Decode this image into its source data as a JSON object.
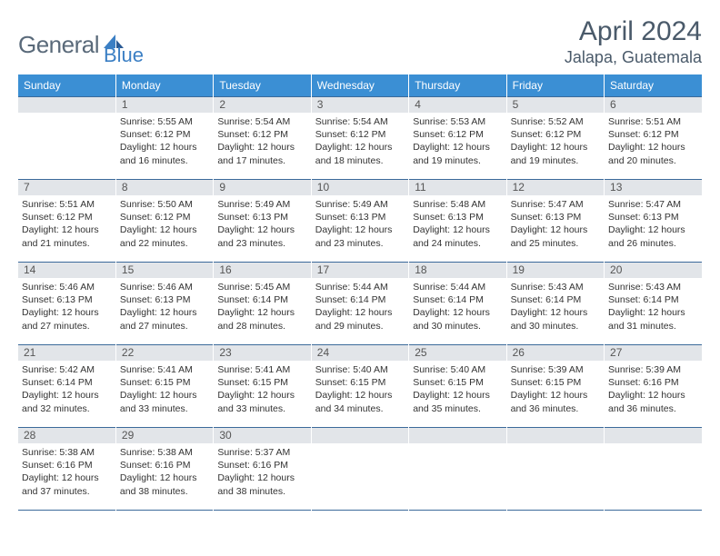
{
  "logo": {
    "text1": "General",
    "text2": "Blue"
  },
  "title": "April 2024",
  "location": "Jalapa, Guatemala",
  "dows": [
    "Sunday",
    "Monday",
    "Tuesday",
    "Wednesday",
    "Thursday",
    "Friday",
    "Saturday"
  ],
  "colors": {
    "header_bg": "#3b8fd4",
    "row_border": "#3b6a9a",
    "daynum_bg": "#e2e5e9",
    "logo_gray": "#5a6a7a",
    "logo_blue": "#3b7fc4"
  },
  "fonts": {
    "title_size": 30,
    "location_size": 18,
    "dow_size": 12,
    "daynum_size": 12,
    "body_size": 10.5
  },
  "weeks": [
    [
      {
        "n": "",
        "sr": "",
        "ss": "",
        "dl": ""
      },
      {
        "n": "1",
        "sr": "Sunrise: 5:55 AM",
        "ss": "Sunset: 6:12 PM",
        "dl": "Daylight: 12 hours and 16 minutes."
      },
      {
        "n": "2",
        "sr": "Sunrise: 5:54 AM",
        "ss": "Sunset: 6:12 PM",
        "dl": "Daylight: 12 hours and 17 minutes."
      },
      {
        "n": "3",
        "sr": "Sunrise: 5:54 AM",
        "ss": "Sunset: 6:12 PM",
        "dl": "Daylight: 12 hours and 18 minutes."
      },
      {
        "n": "4",
        "sr": "Sunrise: 5:53 AM",
        "ss": "Sunset: 6:12 PM",
        "dl": "Daylight: 12 hours and 19 minutes."
      },
      {
        "n": "5",
        "sr": "Sunrise: 5:52 AM",
        "ss": "Sunset: 6:12 PM",
        "dl": "Daylight: 12 hours and 19 minutes."
      },
      {
        "n": "6",
        "sr": "Sunrise: 5:51 AM",
        "ss": "Sunset: 6:12 PM",
        "dl": "Daylight: 12 hours and 20 minutes."
      }
    ],
    [
      {
        "n": "7",
        "sr": "Sunrise: 5:51 AM",
        "ss": "Sunset: 6:12 PM",
        "dl": "Daylight: 12 hours and 21 minutes."
      },
      {
        "n": "8",
        "sr": "Sunrise: 5:50 AM",
        "ss": "Sunset: 6:12 PM",
        "dl": "Daylight: 12 hours and 22 minutes."
      },
      {
        "n": "9",
        "sr": "Sunrise: 5:49 AM",
        "ss": "Sunset: 6:13 PM",
        "dl": "Daylight: 12 hours and 23 minutes."
      },
      {
        "n": "10",
        "sr": "Sunrise: 5:49 AM",
        "ss": "Sunset: 6:13 PM",
        "dl": "Daylight: 12 hours and 23 minutes."
      },
      {
        "n": "11",
        "sr": "Sunrise: 5:48 AM",
        "ss": "Sunset: 6:13 PM",
        "dl": "Daylight: 12 hours and 24 minutes."
      },
      {
        "n": "12",
        "sr": "Sunrise: 5:47 AM",
        "ss": "Sunset: 6:13 PM",
        "dl": "Daylight: 12 hours and 25 minutes."
      },
      {
        "n": "13",
        "sr": "Sunrise: 5:47 AM",
        "ss": "Sunset: 6:13 PM",
        "dl": "Daylight: 12 hours and 26 minutes."
      }
    ],
    [
      {
        "n": "14",
        "sr": "Sunrise: 5:46 AM",
        "ss": "Sunset: 6:13 PM",
        "dl": "Daylight: 12 hours and 27 minutes."
      },
      {
        "n": "15",
        "sr": "Sunrise: 5:46 AM",
        "ss": "Sunset: 6:13 PM",
        "dl": "Daylight: 12 hours and 27 minutes."
      },
      {
        "n": "16",
        "sr": "Sunrise: 5:45 AM",
        "ss": "Sunset: 6:14 PM",
        "dl": "Daylight: 12 hours and 28 minutes."
      },
      {
        "n": "17",
        "sr": "Sunrise: 5:44 AM",
        "ss": "Sunset: 6:14 PM",
        "dl": "Daylight: 12 hours and 29 minutes."
      },
      {
        "n": "18",
        "sr": "Sunrise: 5:44 AM",
        "ss": "Sunset: 6:14 PM",
        "dl": "Daylight: 12 hours and 30 minutes."
      },
      {
        "n": "19",
        "sr": "Sunrise: 5:43 AM",
        "ss": "Sunset: 6:14 PM",
        "dl": "Daylight: 12 hours and 30 minutes."
      },
      {
        "n": "20",
        "sr": "Sunrise: 5:43 AM",
        "ss": "Sunset: 6:14 PM",
        "dl": "Daylight: 12 hours and 31 minutes."
      }
    ],
    [
      {
        "n": "21",
        "sr": "Sunrise: 5:42 AM",
        "ss": "Sunset: 6:14 PM",
        "dl": "Daylight: 12 hours and 32 minutes."
      },
      {
        "n": "22",
        "sr": "Sunrise: 5:41 AM",
        "ss": "Sunset: 6:15 PM",
        "dl": "Daylight: 12 hours and 33 minutes."
      },
      {
        "n": "23",
        "sr": "Sunrise: 5:41 AM",
        "ss": "Sunset: 6:15 PM",
        "dl": "Daylight: 12 hours and 33 minutes."
      },
      {
        "n": "24",
        "sr": "Sunrise: 5:40 AM",
        "ss": "Sunset: 6:15 PM",
        "dl": "Daylight: 12 hours and 34 minutes."
      },
      {
        "n": "25",
        "sr": "Sunrise: 5:40 AM",
        "ss": "Sunset: 6:15 PM",
        "dl": "Daylight: 12 hours and 35 minutes."
      },
      {
        "n": "26",
        "sr": "Sunrise: 5:39 AM",
        "ss": "Sunset: 6:15 PM",
        "dl": "Daylight: 12 hours and 36 minutes."
      },
      {
        "n": "27",
        "sr": "Sunrise: 5:39 AM",
        "ss": "Sunset: 6:16 PM",
        "dl": "Daylight: 12 hours and 36 minutes."
      }
    ],
    [
      {
        "n": "28",
        "sr": "Sunrise: 5:38 AM",
        "ss": "Sunset: 6:16 PM",
        "dl": "Daylight: 12 hours and 37 minutes."
      },
      {
        "n": "29",
        "sr": "Sunrise: 5:38 AM",
        "ss": "Sunset: 6:16 PM",
        "dl": "Daylight: 12 hours and 38 minutes."
      },
      {
        "n": "30",
        "sr": "Sunrise: 5:37 AM",
        "ss": "Sunset: 6:16 PM",
        "dl": "Daylight: 12 hours and 38 minutes."
      },
      {
        "n": "",
        "sr": "",
        "ss": "",
        "dl": ""
      },
      {
        "n": "",
        "sr": "",
        "ss": "",
        "dl": ""
      },
      {
        "n": "",
        "sr": "",
        "ss": "",
        "dl": ""
      },
      {
        "n": "",
        "sr": "",
        "ss": "",
        "dl": ""
      }
    ]
  ]
}
